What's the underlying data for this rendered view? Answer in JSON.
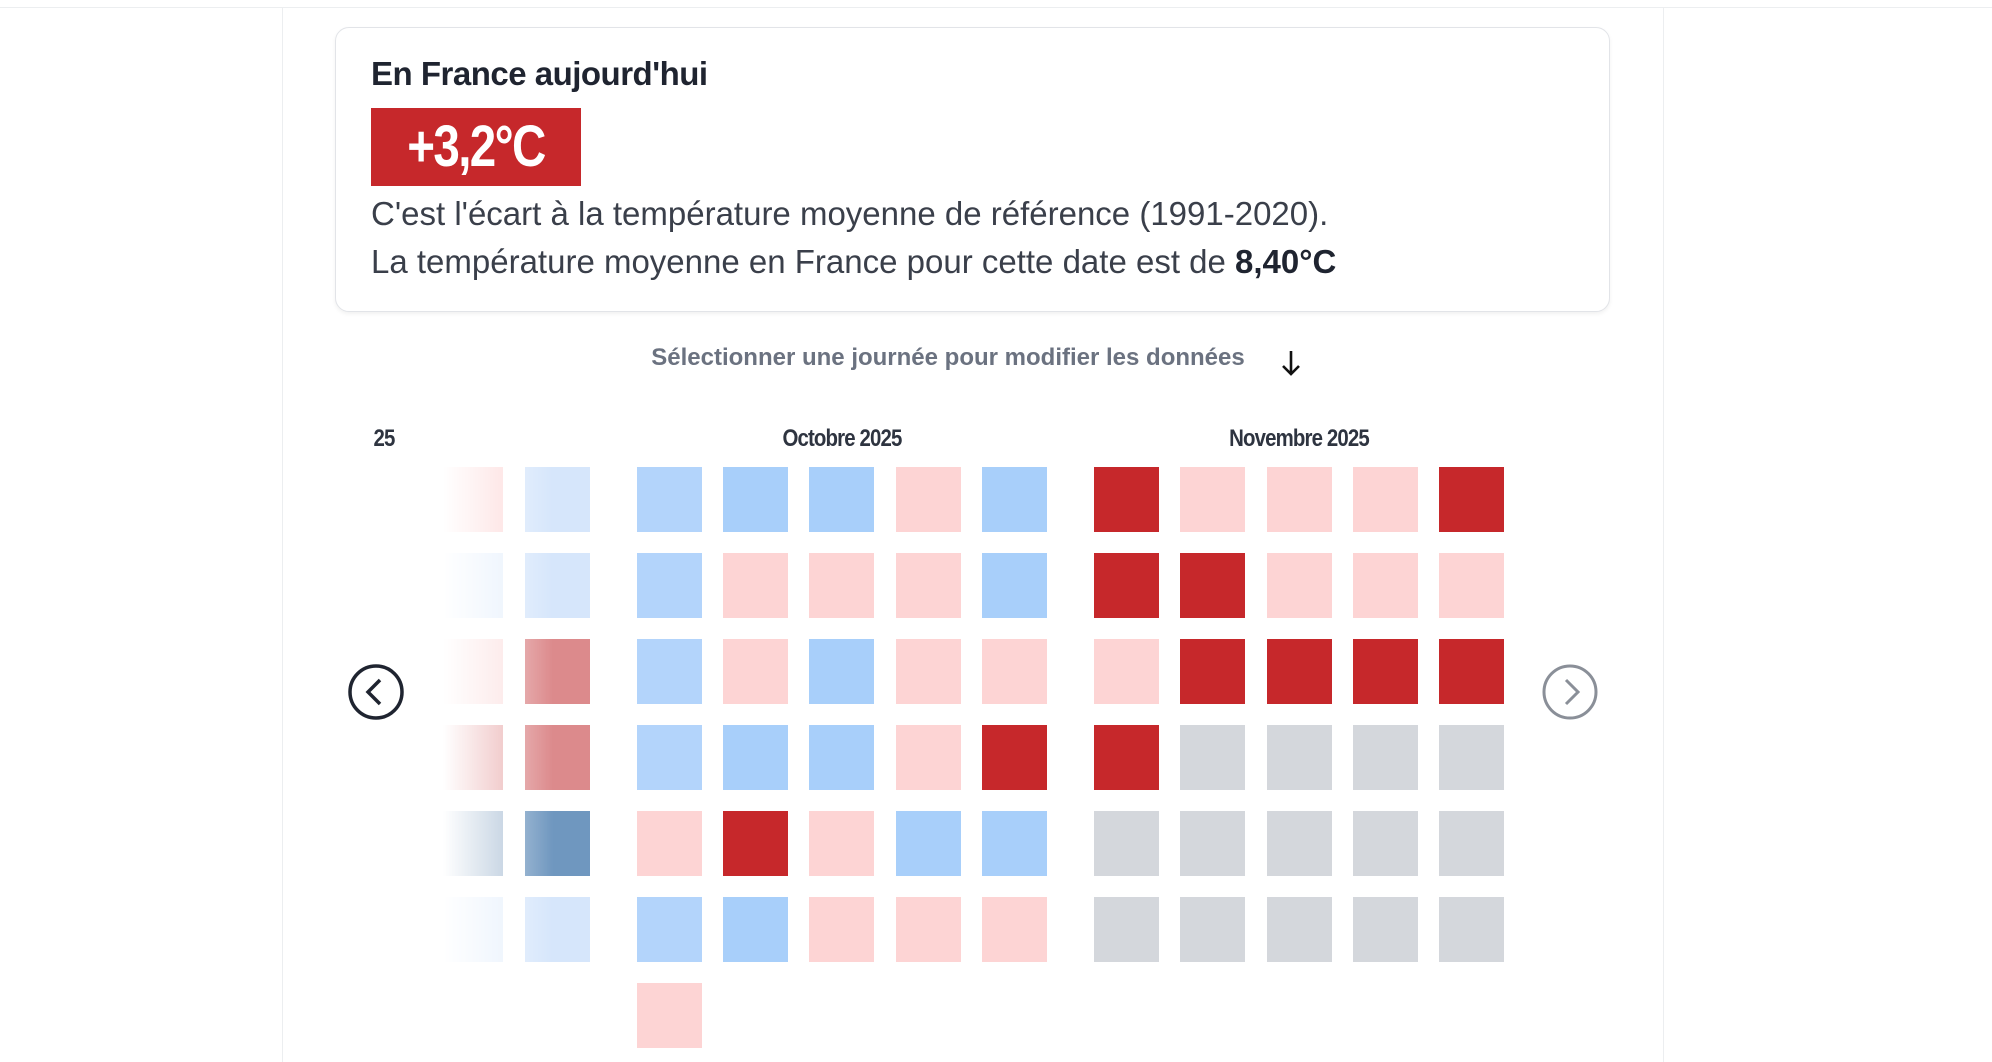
{
  "header": {
    "title": "En France aujourd'hui",
    "anomaly": "+3,2°C",
    "description": "C'est l'écart à la température moyenne de référence (1991-2020).",
    "average_text": "La température moyenne en France pour cette date est de ",
    "average_value": "8,40°C"
  },
  "instruction": "Sélectionner une journée pour modifier les données",
  "calendar": {
    "months": [
      {
        "label": "25",
        "faded": true,
        "rows": [
          [
            "#fdd4d4",
            "#d6e6fb"
          ],
          [
            "#e3eefc",
            "#d6e6fb"
          ],
          [
            "#fbdcdc",
            "#dc8a8c"
          ],
          [
            "#e6a3a4",
            "#dc8a8c"
          ],
          [
            "#9fb6cf",
            "#6f97bf"
          ],
          [
            "#e3eefc",
            "#d6e6fb"
          ]
        ]
      },
      {
        "label": "Octobre 2025",
        "rows": [
          [
            "#b3d4fb",
            "#a8cffa",
            "#a8cffa",
            "#fdd4d4",
            "#a8cffa"
          ],
          [
            "#b3d4fb",
            "#fdd4d4",
            "#fdd4d4",
            "#fdd4d4",
            "#a8cffa"
          ],
          [
            "#b3d4fb",
            "#fdd4d4",
            "#a8cffa",
            "#fdd4d4",
            "#fdd4d4"
          ],
          [
            "#b3d4fb",
            "#a8cffa",
            "#a8cffa",
            "#fdd4d4",
            "#c6282b"
          ],
          [
            "#fdd4d4",
            "#c6282b",
            "#fdd4d4",
            "#a8cffa",
            "#a8cffa"
          ],
          [
            "#b3d4fb",
            "#a8cffa",
            "#fdd4d4",
            "#fdd4d4",
            "#fdd4d4"
          ],
          [
            "#fdd4d4"
          ]
        ]
      },
      {
        "label": "Novembre 2025",
        "rows": [
          [
            "#c6282b",
            "#fdd4d4",
            "#fdd4d4",
            "#fdd4d4",
            "#c6282b"
          ],
          [
            "#c6282b",
            "#c6282b",
            "#fdd4d4",
            "#fdd4d4",
            "#fdd4d4"
          ],
          [
            "#fdd4d4",
            "#c6282b",
            "#c6282b",
            "#c6282b",
            "#c6282b"
          ],
          [
            "#c6282b",
            "#d4d7dc",
            "#d4d7dc",
            "#d4d7dc",
            "#d4d7dc"
          ],
          [
            "#d4d7dc",
            "#d4d7dc",
            "#d4d7dc",
            "#d4d7dc",
            "#d4d7dc"
          ],
          [
            "#d4d7dc",
            "#d4d7dc",
            "#d4d7dc",
            "#d4d7dc",
            "#d4d7dc"
          ]
        ]
      }
    ]
  }
}
